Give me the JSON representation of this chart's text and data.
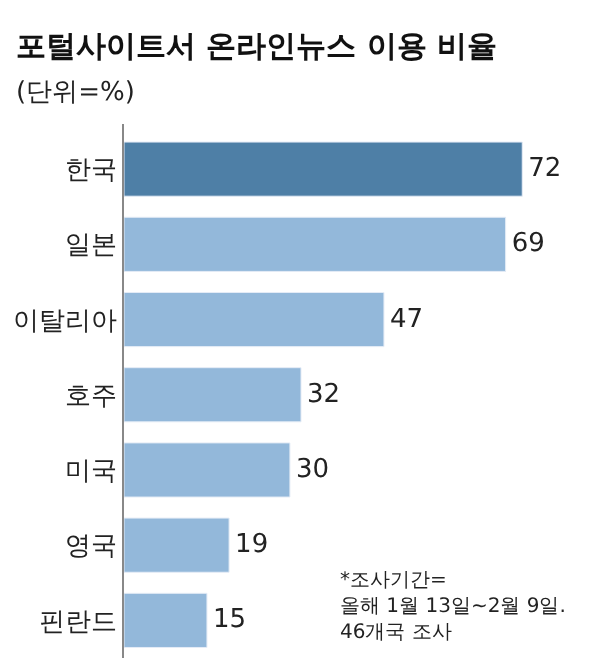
{
  "chart_data": {
    "type": "bar",
    "orientation": "horizontal",
    "title": "포털사이트서 온라인뉴스 이용 비율",
    "subtitle": "(단위=%)",
    "categories": [
      "한국",
      "일본",
      "이탈리아",
      "호주",
      "미국",
      "영국",
      "핀란드"
    ],
    "values": [
      72,
      69,
      47,
      32,
      30,
      19,
      15
    ],
    "colors": [
      "#4e7fa6",
      "#93b8da",
      "#93b8da",
      "#93b8da",
      "#93b8da",
      "#93b8da",
      "#93b8da"
    ],
    "data_labels": true,
    "legend": false,
    "annotations": [
      "*조사기간=\n올해 1월 13일~2월 9일.\n46개국 조사"
    ]
  }
}
